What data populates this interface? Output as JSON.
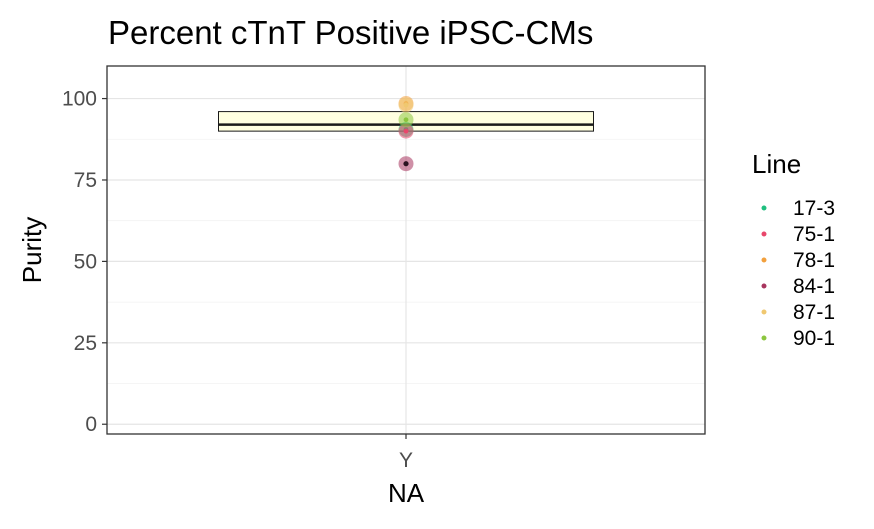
{
  "chart_data": {
    "type": "box",
    "title": "Percent cTnT Positive iPSC-CMs",
    "xlabel": "NA",
    "ylabel": "Purity",
    "categories": [
      "Y"
    ],
    "ylim": [
      -3,
      110
    ],
    "yticks": [
      0,
      25,
      50,
      75,
      100
    ],
    "box": {
      "category": "Y",
      "q1": 90,
      "median": 92,
      "q3": 96,
      "fill": "#FFFFE0"
    },
    "points": [
      {
        "line": "17-3",
        "y": 90.5
      },
      {
        "line": "75-1",
        "y": 90.0
      },
      {
        "line": "78-1",
        "y": 98.5
      },
      {
        "line": "84-1",
        "y": 80.0
      },
      {
        "line": "87-1",
        "y": 98.0
      },
      {
        "line": "90-1",
        "y": 93.5
      }
    ],
    "legend": {
      "title": "Line",
      "position": "right",
      "entries": [
        {
          "label": "17-3",
          "color": "#1FBF7F"
        },
        {
          "label": "75-1",
          "color": "#E8476B"
        },
        {
          "label": "78-1",
          "color": "#F2A03D"
        },
        {
          "label": "84-1",
          "color": "#A8355E"
        },
        {
          "label": "87-1",
          "color": "#F0C870"
        },
        {
          "label": "90-1",
          "color": "#8CC63F"
        }
      ]
    },
    "grid": true
  }
}
